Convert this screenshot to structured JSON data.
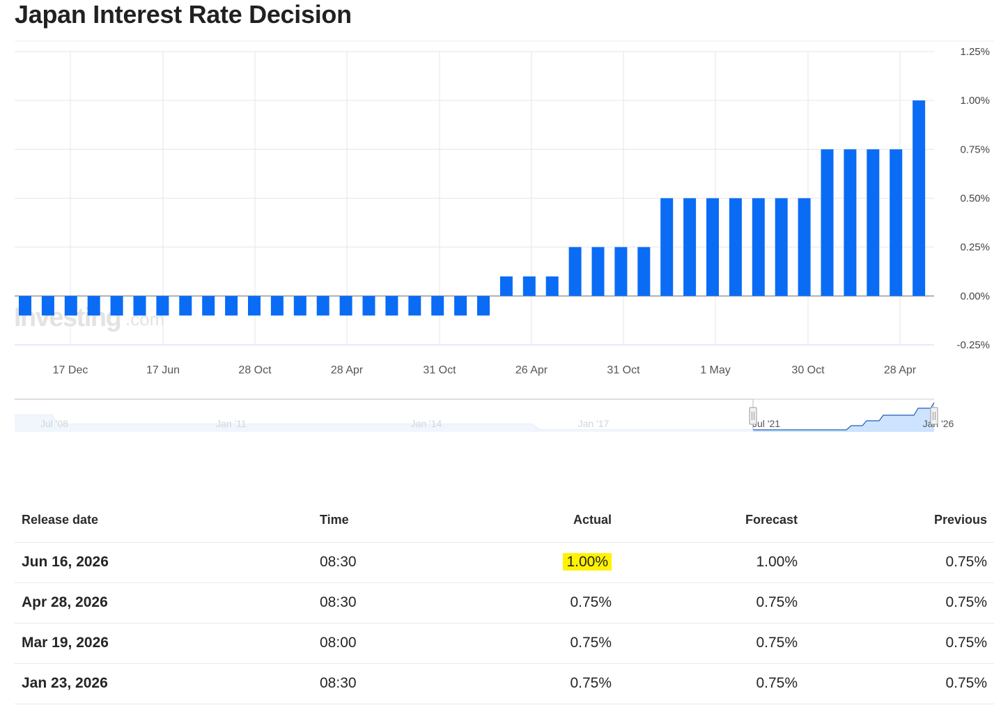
{
  "page": {
    "title": "Japan Interest Rate Decision"
  },
  "chart_data": {
    "type": "bar",
    "title": "",
    "ylim": [
      -0.25,
      1.25
    ],
    "y_ticks": [
      "1.25%",
      "1.00%",
      "0.75%",
      "0.50%",
      "0.25%",
      "0.00%",
      "-0.25%"
    ],
    "y_tick_values": [
      1.25,
      1.0,
      0.75,
      0.5,
      0.25,
      0.0,
      -0.25
    ],
    "x_ticks": [
      "17 Dec",
      "17 Jun",
      "28 Oct",
      "28 Apr",
      "31 Oct",
      "26 Apr",
      "31 Oct",
      "1 May",
      "30 Oct",
      "28 Apr"
    ],
    "values": [
      -0.1,
      -0.1,
      -0.1,
      -0.1,
      -0.1,
      -0.1,
      -0.1,
      -0.1,
      -0.1,
      -0.1,
      -0.1,
      -0.1,
      -0.1,
      -0.1,
      -0.1,
      -0.1,
      -0.1,
      -0.1,
      -0.1,
      -0.1,
      -0.1,
      0.1,
      0.1,
      0.1,
      0.25,
      0.25,
      0.25,
      0.25,
      0.5,
      0.5,
      0.5,
      0.5,
      0.5,
      0.5,
      0.5,
      0.75,
      0.75,
      0.75,
      0.75,
      1.0
    ],
    "grid": true,
    "bar_color": "#0a6cf5",
    "watermark": {
      "main": "Investing",
      "suffix": ".com"
    },
    "navigator": {
      "labels": [
        "Jul '08",
        "Jan '11",
        "Jan '14",
        "Jan '17",
        "Jul '21",
        "Jan '26"
      ]
    }
  },
  "table": {
    "headers": {
      "release_date": "Release date",
      "time": "Time",
      "actual": "Actual",
      "forecast": "Forecast",
      "previous": "Previous"
    },
    "rows": [
      {
        "date": "Jun 16, 2026",
        "time": "08:30",
        "actual": "1.00%",
        "forecast": "1.00%",
        "previous": "0.75%"
      },
      {
        "date": "Apr 28, 2026",
        "time": "08:30",
        "actual": "0.75%",
        "forecast": "0.75%",
        "previous": "0.75%"
      },
      {
        "date": "Mar 19, 2026",
        "time": "08:00",
        "actual": "0.75%",
        "forecast": "0.75%",
        "previous": "0.75%"
      },
      {
        "date": "Jan 23, 2026",
        "time": "08:30",
        "actual": "0.75%",
        "forecast": "0.75%",
        "previous": "0.75%"
      }
    ],
    "highlight_color": "#fff200"
  }
}
